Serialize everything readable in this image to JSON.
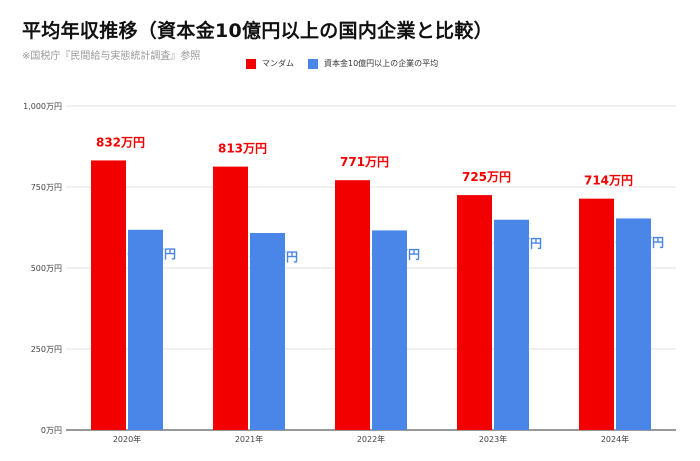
{
  "title": "平均年収推移（資本金10億円以上の国内企業と比較）",
  "subtitle": "※国税庁『民間給与実態統計調査』参照",
  "colors": {
    "series1": "#f20000",
    "series2": "#4a86e8",
    "grid": "#d9d9d9",
    "axis": "#333333",
    "tick": "#444444"
  },
  "chart_data": {
    "type": "bar",
    "categories": [
      "2020年",
      "2021年",
      "2022年",
      "2023年",
      "2024年"
    ],
    "series": [
      {
        "name": "マンダム",
        "values": [
          832,
          813,
          771,
          725,
          714
        ],
        "labels": [
          "832万円",
          "813万円",
          "771万円",
          "725万円",
          "714万円"
        ],
        "color": "#f20000"
      },
      {
        "name": "資本金10億円以上の企業の平均",
        "values": [
          618,
          608,
          616,
          649,
          653
        ],
        "labels": [
          "618万円",
          "608万円",
          "616万円",
          "649万円",
          "653万円"
        ],
        "color": "#4a86e8"
      }
    ],
    "ylim": [
      0,
      1000
    ],
    "yticks": [
      0,
      250,
      500,
      750,
      1000
    ],
    "ytick_labels": [
      "0万円",
      "250万円",
      "500万円",
      "750万円",
      "1,000万円"
    ],
    "grid": true,
    "legend_position": "top"
  }
}
